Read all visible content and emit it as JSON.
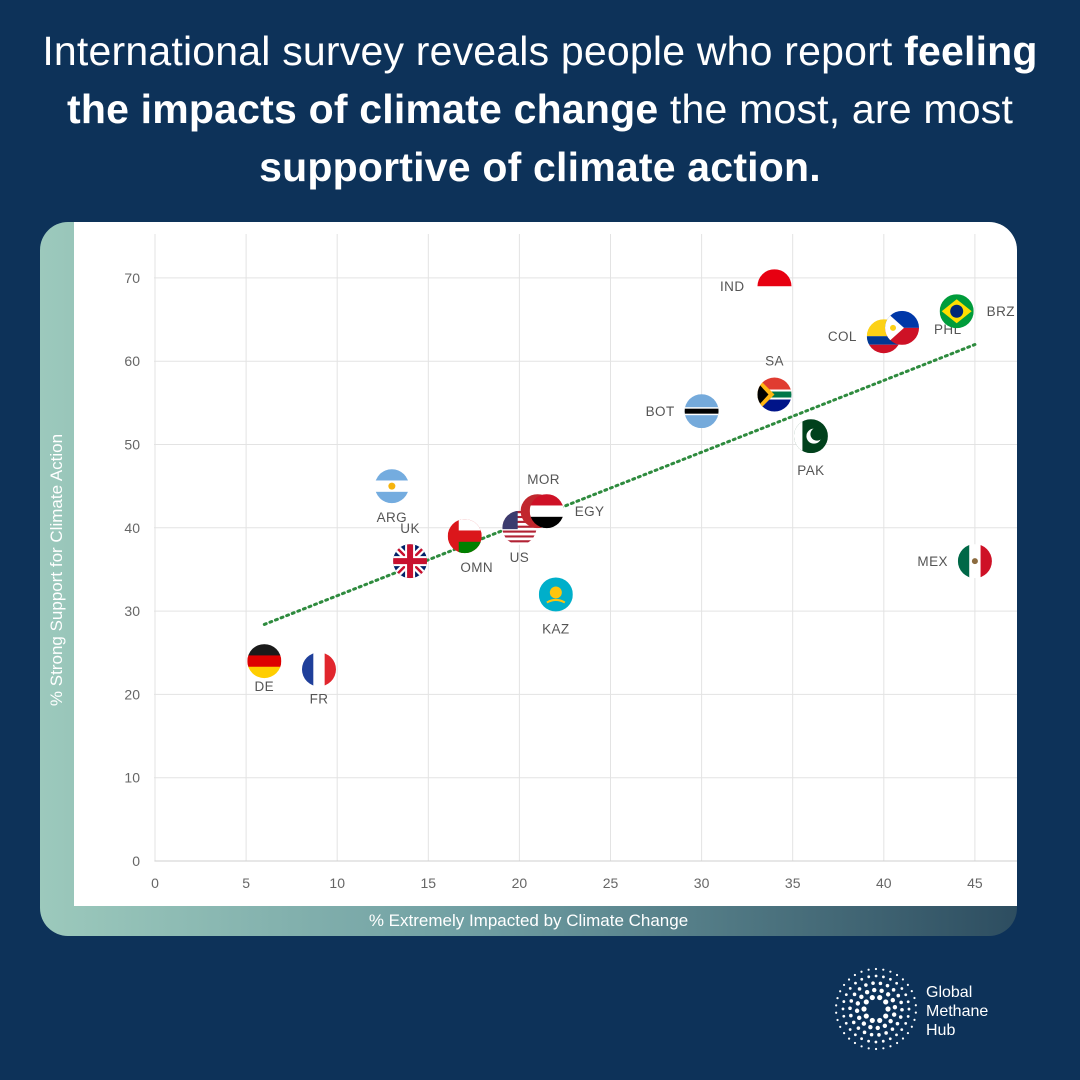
{
  "headline": {
    "part1": "International survey reveals people who report ",
    "bold1": "feeling the impacts of climate change",
    "part2": " the most, are most ",
    "bold2": "supportive of climate action."
  },
  "colors": {
    "background": "#0d3259",
    "trendline": "#2e8b3e",
    "grid": "#e3e3e3",
    "axis_text": "#666666"
  },
  "chart_data": {
    "type": "scatter",
    "title": "",
    "xlabel": "% Extremely Impacted by Climate Change",
    "ylabel": "% Strong Support for Climate Action",
    "xlim": [
      0,
      48
    ],
    "ylim": [
      0,
      73
    ],
    "xticks": [
      0,
      5,
      10,
      15,
      20,
      25,
      30,
      35,
      40,
      45
    ],
    "yticks": [
      0,
      10,
      20,
      30,
      40,
      50,
      60,
      70
    ],
    "grid": true,
    "trendline": {
      "style": "dotted",
      "x": [
        6,
        45
      ],
      "y": [
        28.4,
        62
      ]
    },
    "points": [
      {
        "label": "DE",
        "x": 6,
        "y": 24,
        "flag": "germany-flag"
      },
      {
        "label": "FR",
        "x": 9,
        "y": 23,
        "flag": "france-flag"
      },
      {
        "label": "ARG",
        "x": 13,
        "y": 45,
        "flag": "argentina-flag"
      },
      {
        "label": "UK",
        "x": 14,
        "y": 36,
        "flag": "uk-flag"
      },
      {
        "label": "OMN",
        "x": 17,
        "y": 39,
        "flag": "oman-flag"
      },
      {
        "label": "US",
        "x": 20,
        "y": 40,
        "flag": "usa-flag"
      },
      {
        "label": "MOR",
        "x": 21,
        "y": 42,
        "flag": "morocco-flag"
      },
      {
        "label": "EGY",
        "x": 21.5,
        "y": 42,
        "flag": "egypt-flag"
      },
      {
        "label": "KAZ",
        "x": 22,
        "y": 32,
        "flag": "kazakhstan-flag"
      },
      {
        "label": "BOT",
        "x": 30,
        "y": 54,
        "flag": "botswana-flag"
      },
      {
        "label": "IND",
        "x": 34,
        "y": 69,
        "flag": "indonesia-flag"
      },
      {
        "label": "SA",
        "x": 34,
        "y": 56,
        "flag": "south-africa-flag"
      },
      {
        "label": "PAK",
        "x": 36,
        "y": 51,
        "flag": "pakistan-flag"
      },
      {
        "label": "COL",
        "x": 40,
        "y": 63,
        "flag": "colombia-flag"
      },
      {
        "label": "PHL",
        "x": 41,
        "y": 64,
        "flag": "philippines-flag"
      },
      {
        "label": "BRZ",
        "x": 44,
        "y": 66,
        "flag": "brazil-flag"
      },
      {
        "label": "MEX",
        "x": 45,
        "y": 36,
        "flag": "mexico-flag"
      }
    ]
  },
  "logo": {
    "line1": "Global",
    "line2": "Methane",
    "line3": "Hub"
  }
}
